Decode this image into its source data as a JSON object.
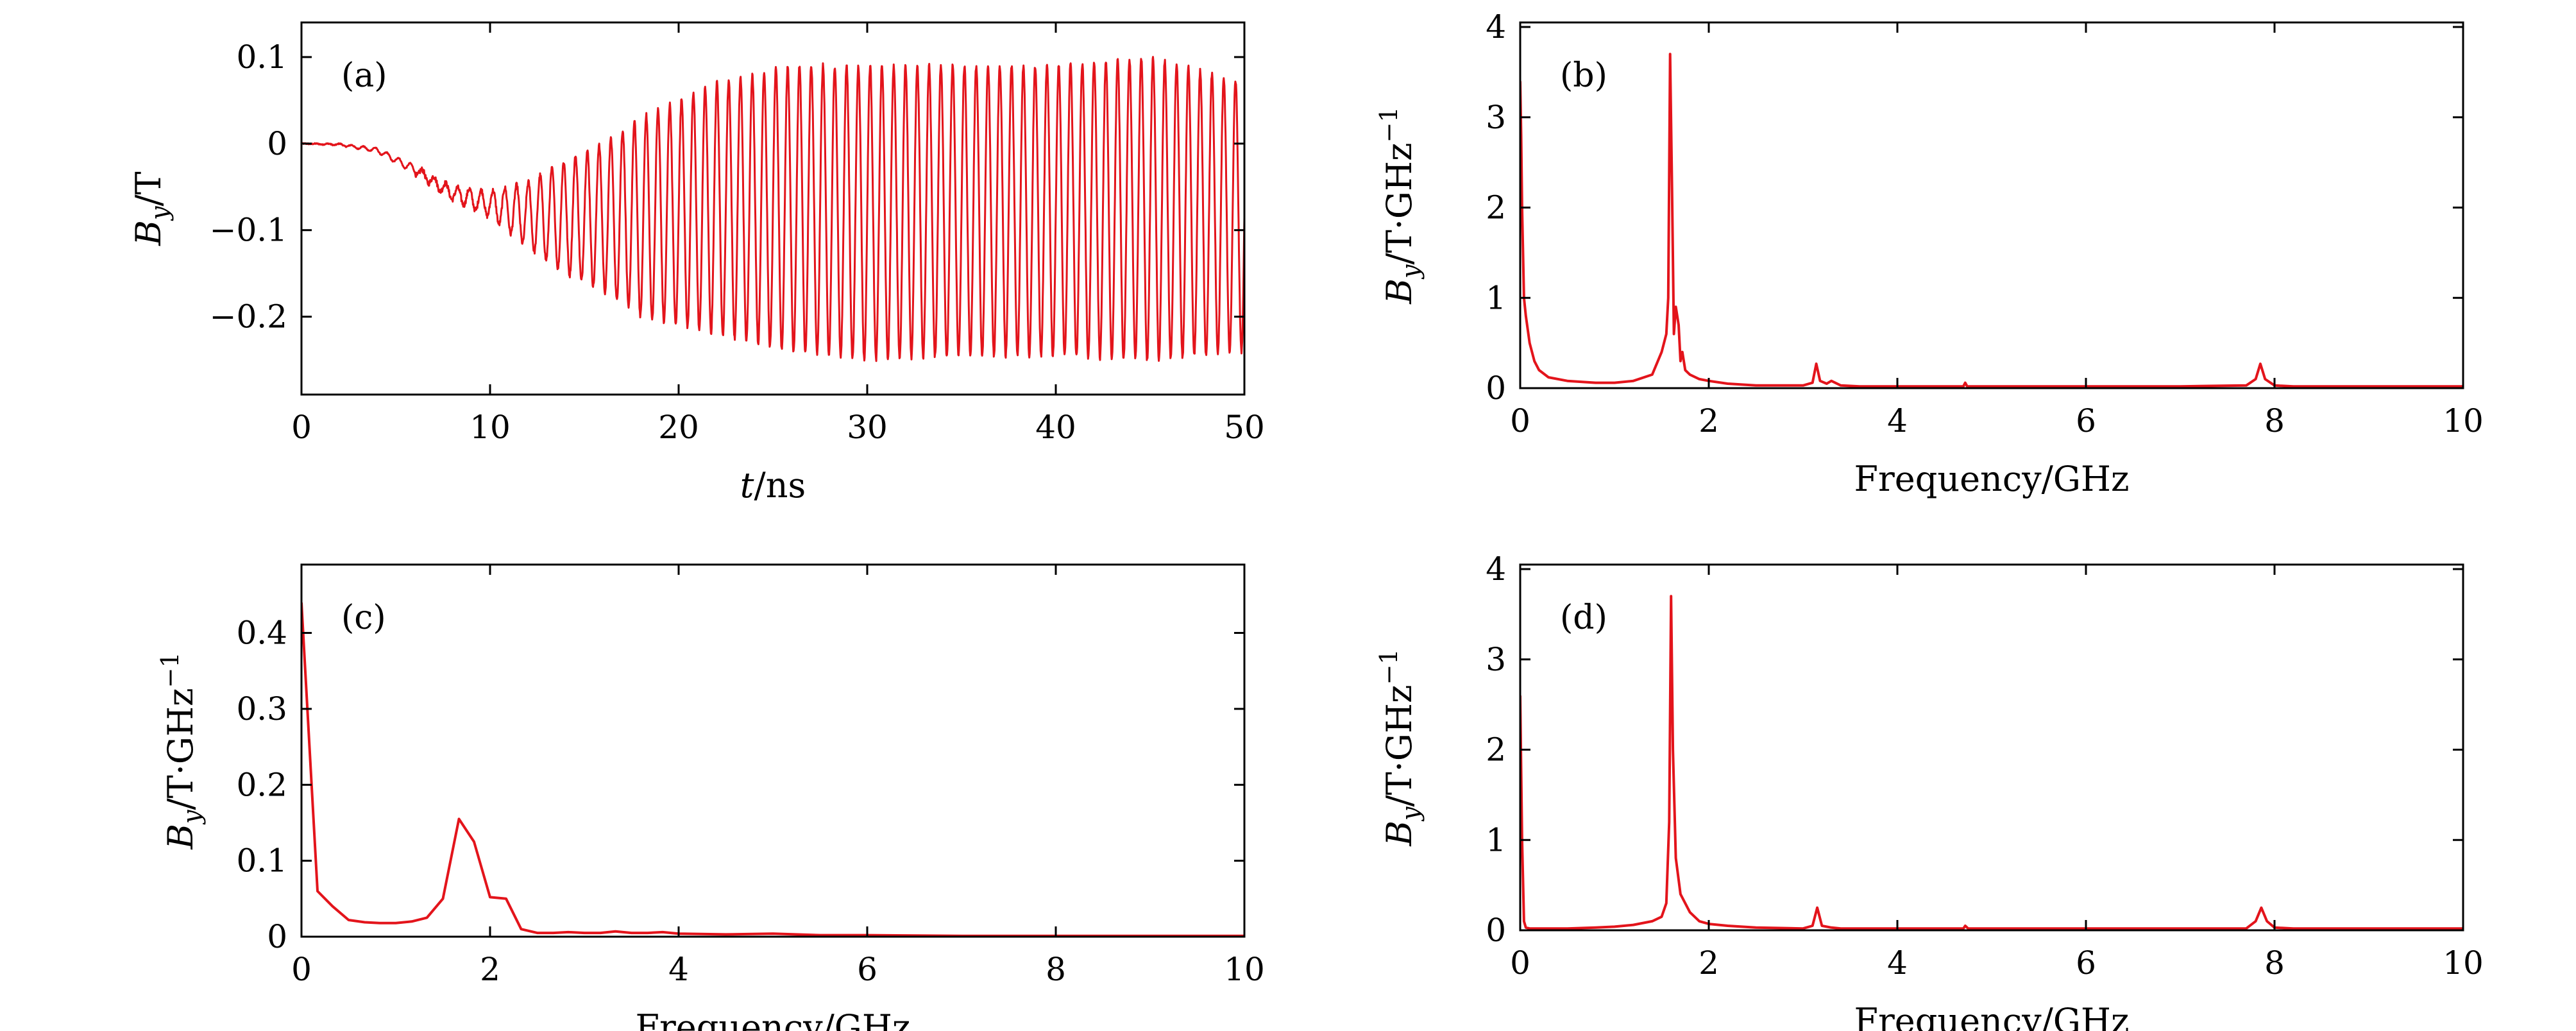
{
  "colors": {
    "series": "#e3141b",
    "axes": "#000000",
    "background": "#ffffff"
  },
  "chart_data": [
    {
      "id": "a",
      "type": "line",
      "panel_label": "(a)",
      "xlabel_var": "t",
      "xlabel_unit": "/ns",
      "ylabel_var": "B",
      "ylabel_sub": "y",
      "ylabel_unit": "/T",
      "ylabel_sup": "",
      "xlim": [
        0,
        50
      ],
      "ylim": [
        -0.29,
        0.14
      ],
      "xticks": [
        0,
        10,
        20,
        30,
        40,
        50
      ],
      "xtick_labels": [
        "0",
        "10",
        "20",
        "30",
        "40",
        "50"
      ],
      "yticks": [
        0.1,
        0,
        -0.1,
        -0.2
      ],
      "ytick_labels": [
        "0.1",
        "0",
        "-0.1",
        "-0.2"
      ],
      "grid": false,
      "series": [
        {
          "description": "damped-onset oscillation: mean drifts from 0 to about -0.08 T, amplitude grows to ~0.17 T, ~1.6 GHz",
          "envelope_t": [
            0,
            2,
            4,
            6,
            8,
            10,
            12,
            14,
            16,
            18,
            20,
            22,
            24,
            26,
            28,
            30,
            35,
            40,
            45,
            50
          ],
          "envelope_max": [
            0,
            0,
            -0.005,
            -0.025,
            -0.05,
            -0.055,
            -0.045,
            -0.02,
            0.0,
            0.03,
            0.05,
            0.07,
            0.08,
            0.09,
            0.09,
            0.09,
            0.09,
            0.09,
            0.1,
            0.07
          ],
          "envelope_min": [
            0,
            -0.002,
            -0.01,
            -0.035,
            -0.065,
            -0.085,
            -0.12,
            -0.15,
            -0.17,
            -0.2,
            -0.21,
            -0.22,
            -0.23,
            -0.24,
            -0.245,
            -0.25,
            -0.245,
            -0.245,
            -0.25,
            -0.24
          ],
          "frequency_GHz": 1.6
        }
      ]
    },
    {
      "id": "b",
      "type": "line",
      "panel_label": "(b)",
      "xlabel_var": "",
      "xlabel_unit": "Frequency/GHz",
      "ylabel_var": "B",
      "ylabel_sub": "y",
      "ylabel_unit": "/T·GHz",
      "ylabel_sup": "−1",
      "xlim": [
        0,
        10
      ],
      "ylim": [
        0,
        4.05
      ],
      "xticks": [
        0,
        2,
        4,
        6,
        8,
        10
      ],
      "xtick_labels": [
        "0",
        "2",
        "4",
        "6",
        "8",
        "10"
      ],
      "yticks": [
        0,
        1,
        2,
        3,
        4
      ],
      "ytick_labels": [
        "0",
        "1",
        "2",
        "3",
        "4"
      ],
      "grid": false,
      "series": [
        {
          "x": [
            0,
            0.01,
            0.02,
            0.04,
            0.06,
            0.1,
            0.15,
            0.2,
            0.3,
            0.5,
            0.8,
            1.0,
            1.2,
            1.4,
            1.5,
            1.55,
            1.57,
            1.59,
            1.61,
            1.63,
            1.65,
            1.68,
            1.7,
            1.72,
            1.75,
            1.8,
            1.9,
            2.0,
            2.2,
            2.5,
            3.0,
            3.1,
            3.14,
            3.18,
            3.25,
            3.3,
            3.4,
            3.6,
            4.0,
            4.5,
            4.7,
            4.72,
            4.74,
            5.0,
            6.0,
            7.0,
            7.7,
            7.8,
            7.85,
            7.9,
            8.0,
            8.2,
            9.0,
            10.0
          ],
          "y": [
            3.4,
            2.8,
            2.0,
            1.0,
            0.8,
            0.5,
            0.3,
            0.2,
            0.12,
            0.08,
            0.06,
            0.06,
            0.08,
            0.15,
            0.4,
            0.6,
            1.0,
            3.7,
            2.2,
            0.6,
            0.9,
            0.7,
            0.3,
            0.4,
            0.2,
            0.15,
            0.1,
            0.08,
            0.05,
            0.03,
            0.03,
            0.06,
            0.27,
            0.08,
            0.05,
            0.08,
            0.03,
            0.02,
            0.02,
            0.02,
            0.02,
            0.06,
            0.02,
            0.02,
            0.02,
            0.02,
            0.03,
            0.1,
            0.27,
            0.1,
            0.03,
            0.02,
            0.02,
            0.02
          ]
        }
      ]
    },
    {
      "id": "c",
      "type": "line",
      "panel_label": "(c)",
      "xlabel_var": "",
      "xlabel_unit": "Frequency/GHz",
      "ylabel_var": "B",
      "ylabel_sub": "y",
      "ylabel_unit": "/T·GHz",
      "ylabel_sup": "−1",
      "xlim": [
        0,
        10
      ],
      "ylim": [
        0,
        0.49
      ],
      "xticks": [
        0,
        2,
        4,
        6,
        8,
        10
      ],
      "xtick_labels": [
        "0",
        "2",
        "4",
        "6",
        "8",
        "10"
      ],
      "yticks": [
        0,
        0.1,
        0.2,
        0.3,
        0.4
      ],
      "ytick_labels": [
        "0",
        "0.1",
        "0.2",
        "0.3",
        "0.4"
      ],
      "grid": false,
      "series": [
        {
          "x": [
            0,
            0.17,
            0.33,
            0.5,
            0.67,
            0.83,
            1.0,
            1.17,
            1.33,
            1.5,
            1.67,
            1.83,
            2.0,
            2.17,
            2.33,
            2.5,
            2.67,
            2.83,
            3.0,
            3.17,
            3.33,
            3.5,
            3.67,
            3.83,
            4.0,
            4.5,
            5.0,
            5.5,
            6.0,
            7.0,
            8.0,
            9.0,
            10.0
          ],
          "y": [
            0.44,
            0.06,
            0.04,
            0.022,
            0.019,
            0.018,
            0.018,
            0.02,
            0.025,
            0.05,
            0.155,
            0.125,
            0.052,
            0.05,
            0.01,
            0.005,
            0.005,
            0.006,
            0.005,
            0.005,
            0.007,
            0.005,
            0.005,
            0.006,
            0.004,
            0.003,
            0.004,
            0.002,
            0.002,
            0.001,
            0.001,
            0.001,
            0.001
          ]
        }
      ]
    },
    {
      "id": "d",
      "type": "line",
      "panel_label": "(d)",
      "xlabel_var": "",
      "xlabel_unit": "Frequency/GHz",
      "ylabel_var": "B",
      "ylabel_sub": "y",
      "ylabel_unit": "/T·GHz",
      "ylabel_sup": "−1",
      "xlim": [
        0,
        10
      ],
      "ylim": [
        0,
        4.05
      ],
      "xticks": [
        0,
        2,
        4,
        6,
        8,
        10
      ],
      "xtick_labels": [
        "0",
        "2",
        "4",
        "6",
        "8",
        "10"
      ],
      "yticks": [
        0,
        1,
        2,
        3,
        4
      ],
      "ytick_labels": [
        "0",
        "1",
        "2",
        "3",
        "4"
      ],
      "grid": false,
      "series": [
        {
          "x": [
            0,
            0.02,
            0.04,
            0.06,
            0.1,
            0.2,
            0.5,
            0.8,
            1.0,
            1.2,
            1.4,
            1.5,
            1.55,
            1.58,
            1.6,
            1.62,
            1.65,
            1.7,
            1.8,
            1.9,
            2.0,
            2.2,
            2.5,
            3.0,
            3.1,
            3.15,
            3.2,
            3.3,
            3.4,
            3.6,
            4.0,
            4.7,
            4.72,
            4.75,
            5.0,
            6.0,
            7.0,
            7.7,
            7.8,
            7.86,
            7.92,
            8.0,
            8.2,
            9.0,
            10.0
          ],
          "y": [
            2.6,
            1.0,
            0.1,
            0.03,
            0.02,
            0.02,
            0.02,
            0.03,
            0.04,
            0.06,
            0.1,
            0.15,
            0.3,
            1.2,
            3.7,
            2.0,
            0.8,
            0.4,
            0.2,
            0.1,
            0.07,
            0.05,
            0.03,
            0.02,
            0.05,
            0.25,
            0.05,
            0.03,
            0.02,
            0.02,
            0.02,
            0.02,
            0.05,
            0.02,
            0.02,
            0.02,
            0.02,
            0.02,
            0.1,
            0.25,
            0.1,
            0.03,
            0.02,
            0.02,
            0.02
          ]
        }
      ]
    }
  ]
}
